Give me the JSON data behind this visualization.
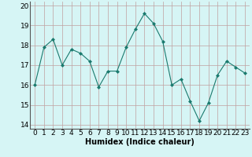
{
  "x": [
    0,
    1,
    2,
    3,
    4,
    5,
    6,
    7,
    8,
    9,
    10,
    11,
    12,
    13,
    14,
    15,
    16,
    17,
    18,
    19,
    20,
    21,
    22,
    23
  ],
  "y": [
    16.0,
    17.9,
    18.3,
    17.0,
    17.8,
    17.6,
    17.2,
    15.9,
    16.7,
    16.7,
    17.9,
    18.8,
    19.6,
    19.1,
    18.2,
    16.0,
    16.3,
    15.2,
    14.2,
    15.1,
    16.5,
    17.2,
    16.9,
    16.6
  ],
  "line_color": "#1a7a6e",
  "marker": "D",
  "marker_size": 2,
  "bg_color": "#d6f5f5",
  "grid_color": "#c0a0a0",
  "xlabel": "Humidex (Indice chaleur)",
  "ylim": [
    13.8,
    20.2
  ],
  "xlim": [
    -0.5,
    23.5
  ],
  "yticks": [
    14,
    15,
    16,
    17,
    18,
    19,
    20
  ],
  "xticks": [
    0,
    1,
    2,
    3,
    4,
    5,
    6,
    7,
    8,
    9,
    10,
    11,
    12,
    13,
    14,
    15,
    16,
    17,
    18,
    19,
    20,
    21,
    22,
    23
  ],
  "xlabel_fontsize": 7,
  "tick_fontsize": 6.5
}
